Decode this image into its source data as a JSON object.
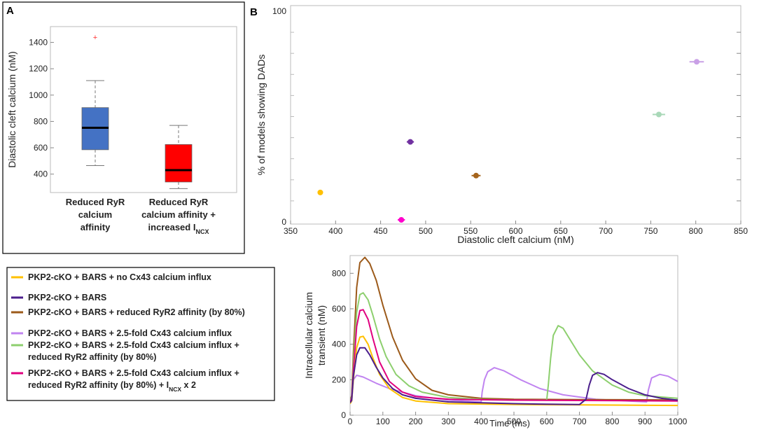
{
  "panels": {
    "a": {
      "letter": "A"
    },
    "b": {
      "letter": "B"
    }
  },
  "chart_data": [
    {
      "id": "panel-a-boxplot",
      "type": "box",
      "ylabel": "Diastolic cleft calcium  (nM)",
      "ylim": [
        260,
        1520
      ],
      "yticks": [
        400,
        600,
        800,
        1000,
        1200,
        1400
      ],
      "grid": false,
      "boxes": [
        {
          "label_lines": [
            "Reduced RyR",
            "calcium",
            "affinity"
          ],
          "color": "#4472C4",
          "whisker_low": 465,
          "q1": 585,
          "median": 752,
          "q3": 905,
          "whisker_high": 1110,
          "outliers": [
            1440
          ]
        },
        {
          "label_lines": [
            "Reduced RyR",
            "calcium affinity +",
            "increased I"
          ],
          "label_subscript": "NCX",
          "color": "#FF0000",
          "whisker_low": 290,
          "q1": 340,
          "median": 430,
          "q3": 625,
          "whisker_high": 770,
          "outliers": []
        }
      ]
    },
    {
      "id": "panel-b-scatter",
      "type": "scatter",
      "xlabel": "Diastolic cleft calcium (nM)",
      "ylabel": "% of models showing DADs",
      "xlim": [
        350,
        850
      ],
      "ylim": [
        0,
        100
      ],
      "xticks": [
        350,
        400,
        450,
        500,
        550,
        600,
        650,
        700,
        750,
        800,
        850
      ],
      "yticks_labeled": [
        0,
        100
      ],
      "yticks_minor": [
        10,
        20,
        30,
        40,
        50,
        60,
        70,
        80,
        90
      ],
      "points": [
        {
          "series": "no-cx43",
          "x": 383,
          "y": 14,
          "xerr": 3,
          "color": "#FFC000"
        },
        {
          "series": "bars",
          "x": 483,
          "y": 38,
          "xerr": 4,
          "color": "#7030A0"
        },
        {
          "series": "reduced-ryr2",
          "x": 556,
          "y": 22,
          "xerr": 5,
          "color": "#A5641C"
        },
        {
          "series": "cx43-2.5",
          "x": 801,
          "y": 76,
          "xerr": 8,
          "color": "#C9A0E6"
        },
        {
          "series": "cx43-2.5-reduced-ryr2",
          "x": 759,
          "y": 51,
          "xerr": 7,
          "color": "#A9D8B8"
        },
        {
          "series": "cx43-2.5-reduced-ryr2-incx",
          "x": 473,
          "y": 1,
          "xerr": 4,
          "color": "#FF00CC"
        }
      ]
    },
    {
      "id": "panel-b-transient",
      "type": "line",
      "xlabel": "Time (ms)",
      "ylabel_lines": [
        "Intracellular calcium",
        "transient (nM)"
      ],
      "xlim": [
        0,
        1000
      ],
      "ylim": [
        0,
        900
      ],
      "xticks": [
        0,
        100,
        200,
        300,
        400,
        500,
        600,
        700,
        800,
        900,
        1000
      ],
      "yticks": [
        0,
        200,
        400,
        600,
        800
      ],
      "series": [
        {
          "name": "PKP2-cKO + BARS + 2.5-fold Cx43 calcium influx",
          "color": "#C084F0",
          "x": [
            0,
            5,
            10,
            20,
            40,
            80,
            120,
            200,
            300,
            400,
            403,
            410,
            420,
            440,
            470,
            520,
            580,
            650,
            750,
            850,
            905,
            910,
            920,
            945,
            970,
            1000
          ],
          "y": [
            70,
            80,
            200,
            225,
            215,
            180,
            150,
            110,
            85,
            75,
            130,
            200,
            245,
            268,
            250,
            200,
            150,
            115,
            90,
            80,
            75,
            140,
            210,
            230,
            220,
            190
          ]
        },
        {
          "name": "PKP2-cKO + BARS + reduced RyR2 affinity (by 80%)",
          "color": "#9C5A1A",
          "x": [
            0,
            5,
            10,
            20,
            30,
            45,
            60,
            80,
            100,
            130,
            160,
            200,
            250,
            300,
            400,
            500,
            700,
            1000
          ],
          "y": [
            80,
            110,
            350,
            720,
            860,
            890,
            855,
            760,
            620,
            440,
            310,
            205,
            140,
            115,
            95,
            90,
            88,
            86
          ]
        },
        {
          "name": "PKP2-cKO + BARS + 2.5-fold Cx43 calcium influx  + reduced RyR2 affinity (by 80%)",
          "color": "#8DCF6E",
          "x": [
            0,
            5,
            10,
            20,
            30,
            40,
            55,
            70,
            90,
            110,
            140,
            180,
            220,
            300,
            400,
            500,
            600,
            605,
            612,
            620,
            635,
            650,
            670,
            700,
            740,
            800,
            850,
            900,
            1000
          ],
          "y": [
            80,
            100,
            300,
            580,
            680,
            690,
            650,
            560,
            430,
            330,
            230,
            165,
            130,
            100,
            90,
            85,
            85,
            170,
            320,
            450,
            505,
            490,
            430,
            340,
            250,
            170,
            130,
            110,
            95
          ]
        },
        {
          "name": "PKP2-cKO + BARS + 2.5-fold Cx43 calcium influx  + reduced RyR2 affinity (by 80%) + I NCX x 2",
          "color": "#E0007F",
          "x": [
            0,
            5,
            10,
            20,
            30,
            40,
            55,
            70,
            90,
            120,
            160,
            200,
            300,
            500,
            1000
          ],
          "y": [
            75,
            95,
            250,
            500,
            590,
            595,
            540,
            430,
            300,
            190,
            130,
            105,
            90,
            85,
            80
          ]
        },
        {
          "name": "PKP2-cKO + BARS + no Cx43 calcium influx",
          "color": "#FFC000",
          "x": [
            0,
            5,
            10,
            20,
            30,
            40,
            55,
            70,
            90,
            120,
            160,
            200,
            300,
            500,
            700,
            1000
          ],
          "y": [
            65,
            80,
            200,
            380,
            440,
            445,
            400,
            320,
            230,
            150,
            100,
            80,
            65,
            60,
            58,
            55
          ]
        },
        {
          "name": "PKP2-cKO + BARS",
          "color": "#4B1E8C",
          "x": [
            0,
            5,
            10,
            20,
            30,
            45,
            60,
            80,
            100,
            130,
            160,
            200,
            300,
            400,
            500,
            600,
            700,
            720,
            730,
            740,
            755,
            775,
            800,
            850,
            900,
            950,
            1000
          ],
          "y": [
            70,
            85,
            220,
            340,
            380,
            380,
            340,
            270,
            210,
            150,
            115,
            95,
            75,
            70,
            65,
            62,
            60,
            90,
            170,
            225,
            240,
            230,
            200,
            150,
            115,
            95,
            85
          ]
        }
      ]
    }
  ],
  "legend": {
    "items": [
      {
        "color": "#FFC000",
        "lines": [
          "PKP2-cKO + BARS + no Cx43 calcium influx"
        ]
      },
      {
        "color": "#4B1E8C",
        "lines": [
          "PKP2-cKO + BARS"
        ]
      },
      {
        "color": "#9C5A1A",
        "lines": [
          "PKP2-cKO + BARS + reduced RyR2 affinity (by 80%)"
        ]
      },
      {
        "color": "#C084F0",
        "lines": [
          "PKP2-cKO + BARS + 2.5-fold Cx43 calcium influx"
        ]
      },
      {
        "color": "#8DCF6E",
        "lines": [
          "PKP2-cKO + BARS + 2.5-fold Cx43 calcium influx  +",
          "reduced RyR2 affinity (by 80%)"
        ]
      },
      {
        "color": "#E0007F",
        "lines": [
          "PKP2-cKO + BARS + 2.5-fold Cx43 calcium influx  +",
          "reduced RyR2 affinity (by 80%) + I"
        ],
        "subscript": "NCX",
        "suffix": " x 2"
      }
    ]
  }
}
